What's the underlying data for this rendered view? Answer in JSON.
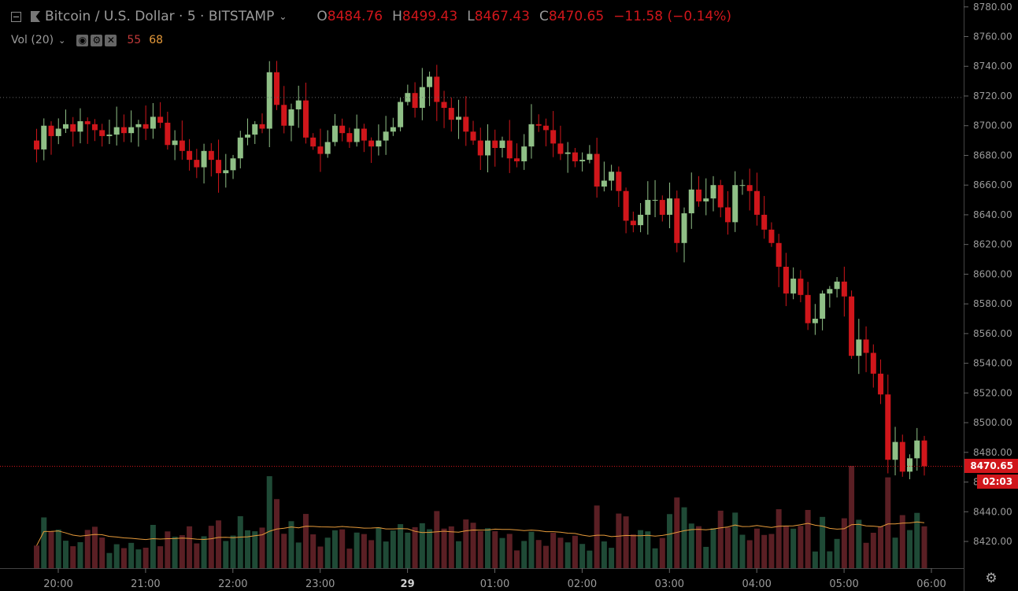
{
  "header": {
    "symbol": "Bitcoin / U.S. Dollar · 5 · BITSTAMP",
    "open_label": "O",
    "open": "8484.76",
    "high_label": "H",
    "high": "8499.43",
    "low_label": "L",
    "low": "8467.43",
    "close_label": "C",
    "close": "8470.65",
    "change": "−11.58 (−0.14%)"
  },
  "volume_indicator": {
    "label": "Vol (20)",
    "value1": "55",
    "value2": "68",
    "buttons": [
      "eye-icon",
      "gear-icon",
      "close-icon"
    ]
  },
  "price_tag": "8470.65",
  "timer": "02:03",
  "colors": {
    "up": "#8fbf86",
    "down": "#d0161b",
    "vol_up": "#1f4a36",
    "vol_down": "#5a1f24",
    "ma": "#e69a3a"
  },
  "chart_data": {
    "type": "candlestick",
    "symbol": "BTCUSD",
    "interval": "5",
    "y_ticks": [
      8420,
      8440,
      8460,
      8480,
      8500,
      8520,
      8540,
      8560,
      8580,
      8600,
      8620,
      8640,
      8660,
      8680,
      8700,
      8720,
      8740,
      8760,
      8780
    ],
    "y_labels": [
      "8420.00",
      "8440.00",
      "8460.00",
      "8480.00",
      "8500.00",
      "8520.00",
      "8540.00",
      "8560.00",
      "8580.00",
      "8600.00",
      "8620.00",
      "8640.00",
      "8660.00",
      "8680.00",
      "8700.00",
      "8720.00",
      "8740.00",
      "8760.00",
      "8780.00"
    ],
    "ylim": [
      8402,
      8782
    ],
    "x_ticks": [
      {
        "label": "20:00",
        "bold": false
      },
      {
        "label": "21:00",
        "bold": false
      },
      {
        "label": "22:00",
        "bold": false
      },
      {
        "label": "23:00",
        "bold": false
      },
      {
        "label": "29",
        "bold": true
      },
      {
        "label": "01:00",
        "bold": false
      },
      {
        "label": "02:00",
        "bold": false
      },
      {
        "label": "03:00",
        "bold": false
      },
      {
        "label": "04:00",
        "bold": false
      },
      {
        "label": "05:00",
        "bold": false
      },
      {
        "label": "06:00",
        "bold": false
      }
    ],
    "last_price": 8470.65,
    "ref_line": 8719,
    "closes": [
      8684,
      8700,
      8693,
      8698,
      8701,
      8696,
      8703,
      8701,
      8697,
      8693,
      8694,
      8699,
      8695,
      8699,
      8701,
      8698,
      8706,
      8702,
      8687,
      8690,
      8683,
      8677,
      8672,
      8683,
      8677,
      8668,
      8670,
      8678,
      8692,
      8694,
      8701,
      8698,
      8736,
      8714,
      8700,
      8711,
      8717,
      8692,
      8686,
      8681,
      8689,
      8700,
      8695,
      8689,
      8698,
      8690,
      8686,
      8690,
      8696,
      8699,
      8716,
      8722,
      8712,
      8726,
      8733,
      8716,
      8712,
      8704,
      8706,
      8696,
      8690,
      8680,
      8690,
      8685,
      8690,
      8678,
      8676,
      8686,
      8701,
      8700,
      8697,
      8688,
      8681,
      8682,
      8676,
      8677,
      8681,
      8659,
      8663,
      8669,
      8656,
      8636,
      8633,
      8640,
      8650,
      8650,
      8640,
      8651,
      8621,
      8641,
      8657,
      8649,
      8651,
      8660,
      8645,
      8635,
      8660,
      8660,
      8656,
      8640,
      8630,
      8621,
      8605,
      8587,
      8597,
      8586,
      8567,
      8570,
      8587,
      8590,
      8595,
      8585,
      8545,
      8556,
      8547,
      8533,
      8519,
      8475,
      8487,
      8467,
      8476,
      8488,
      8470.65
    ],
    "volume_ma_label": "68",
    "volume_last_label": "55"
  }
}
